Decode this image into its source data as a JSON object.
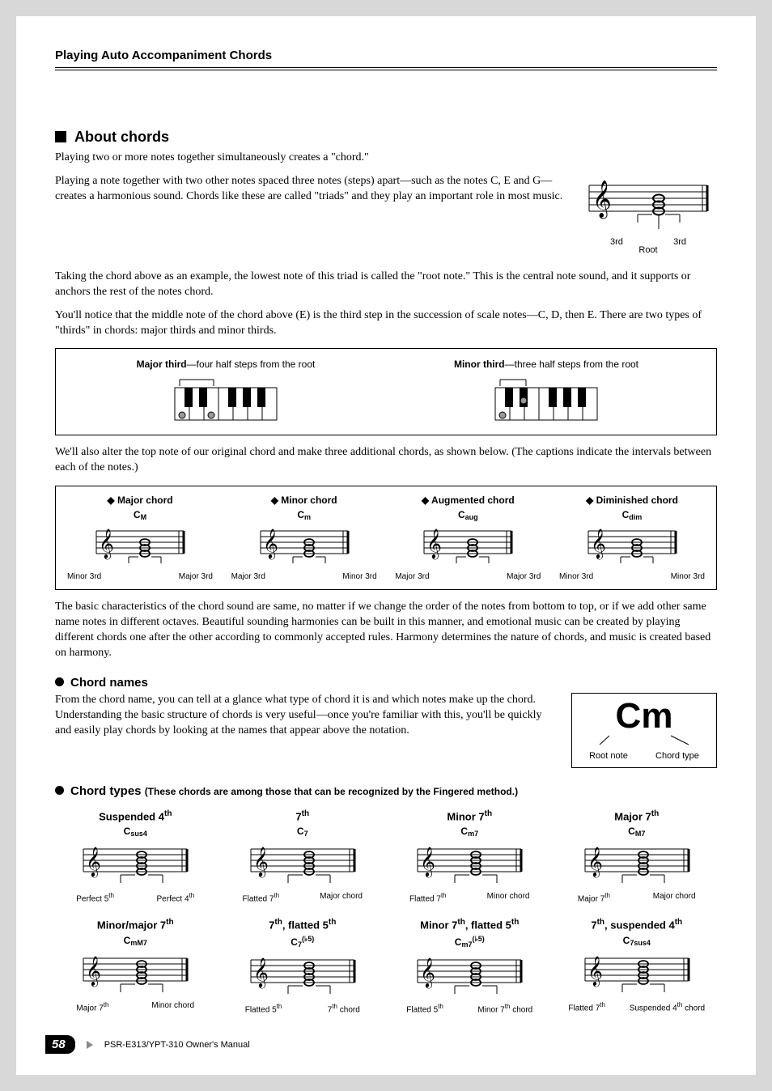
{
  "header": {
    "title": "Playing Auto Accompaniment Chords"
  },
  "about": {
    "heading": "About chords",
    "p1": "Playing two or more notes together simultaneously creates a \"chord.\"",
    "p2": "Playing a note together with two other notes spaced three notes (steps) apart—such as the notes C, E and G—creates a harmonious sound. Chords like these are called \"triads\" and they play an important role in most music.",
    "staff": {
      "left": "3rd",
      "mid": "Root",
      "right": "3rd"
    },
    "p3": "Taking the chord above as an example, the lowest note of this triad is called the \"root note.\" This is the central note sound, and it supports or anchors the rest of the notes chord.",
    "p4": "You'll notice that the middle note of the chord above (E) is the third step in the succession of scale notes—C, D, then E. There are two types of \"thirds\" in chords: major thirds and minor thirds."
  },
  "thirds": {
    "major_b": "Major third",
    "major_rest": "—four half steps from the root",
    "minor_b": "Minor third",
    "minor_rest": "—three half steps from the root"
  },
  "p5": "We'll also alter the top note of our original chord and make three additional chords, as shown below. (The captions indicate the intervals between each of the notes.)",
  "chord4": [
    {
      "title": "Major chord",
      "sym": "C",
      "sub": "M",
      "l": "Minor 3rd",
      "r": "Major 3rd"
    },
    {
      "title": "Minor chord",
      "sym": "C",
      "sub": "m",
      "l": "Major 3rd",
      "r": "Minor 3rd"
    },
    {
      "title": "Augmented chord",
      "sym": "C",
      "sub": "aug",
      "l": "Major 3rd",
      "r": "Major 3rd"
    },
    {
      "title": "Diminished chord",
      "sym": "C",
      "sub": "dim",
      "l": "Minor 3rd",
      "r": "Minor 3rd"
    }
  ],
  "p6": "The basic characteristics of the chord sound are same, no matter if we change the order of the notes from bottom to top, or if we add other same name notes in different octaves. Beautiful sounding harmonies can be built in this manner, and emotional music can be created by playing different chords one after the other according to commonly accepted rules. Harmony determines the nature of chords, and music is created based on harmony.",
  "chord_names": {
    "heading": "Chord names",
    "p": "From the chord name, you can tell at a glance what type of chord it is and which notes make up the chord. Understanding the basic structure of chords is very useful—once you're familiar with this, you'll be quickly and easily play chords by looking at the names that appear above the notation.",
    "cm": "Cm",
    "root": "Root note",
    "type": "Chord type"
  },
  "chord_types": {
    "heading": "Chord types",
    "sub": "(These chords are among those that can be recognized by the Fingered method.)",
    "items": [
      {
        "title_pre": "Suspended 4",
        "title_sup": "th",
        "sym": "C",
        "sub": "sus4",
        "l_pre": "Perfect 5",
        "l_sup": "th",
        "r_pre": "Perfect 4",
        "r_sup": "th"
      },
      {
        "title_pre": "7",
        "title_sup": "th",
        "sym": "C",
        "sub": "7",
        "l_pre": "Flatted 7",
        "l_sup": "th",
        "r_pre": "Major chord",
        "r_sup": ""
      },
      {
        "title_pre": "Minor 7",
        "title_sup": "th",
        "sym": "C",
        "sub": "m7",
        "l_pre": "Flatted 7",
        "l_sup": "th",
        "r_pre": "Minor chord",
        "r_sup": ""
      },
      {
        "title_pre": "Major 7",
        "title_sup": "th",
        "sym": "C",
        "sub": "M7",
        "l_pre": "Major 7",
        "l_sup": "th",
        "r_pre": "Major chord",
        "r_sup": ""
      },
      {
        "title_pre": "Minor/major 7",
        "title_sup": "th",
        "sym": "C",
        "sub": "mM7",
        "l_pre": "Major 7",
        "l_sup": "th",
        "r_pre": "Minor chord",
        "r_sup": ""
      },
      {
        "title_pre": "7",
        "title_sup": "th",
        "title_post": ", flatted 5",
        "title_sup2": "th",
        "sym": "C",
        "sub": "7",
        "sup2": "(♭5)",
        "l_pre": "Flatted 5",
        "l_sup": "th",
        "r_pre": "7",
        "r_sup": "th",
        "r_post": " chord"
      },
      {
        "title_pre": "Minor 7",
        "title_sup": "th",
        "title_post": ", flatted 5",
        "title_sup2": "th",
        "sym": "C",
        "sub": "m7",
        "sup2": "(♭5)",
        "l_pre": "Flatted 5",
        "l_sup": "th",
        "r_pre": "Minor 7",
        "r_sup": "th",
        "r_post": " chord"
      },
      {
        "title_pre": "7",
        "title_sup": "th",
        "title_post": ", suspended 4",
        "title_sup2": "th",
        "sym": "C",
        "sub": "7sus4",
        "l_pre": "Flatted 7",
        "l_sup": "th",
        "r_pre": "Suspended 4",
        "r_sup": "th",
        "r_post": " chord"
      }
    ]
  },
  "footer": {
    "page": "58",
    "model": "PSR-E313/YPT-310   Owner's Manual"
  },
  "svg": {
    "staff_color": "#000",
    "key_white": "#fff",
    "key_black": "#000",
    "dot_fill": "#999"
  }
}
